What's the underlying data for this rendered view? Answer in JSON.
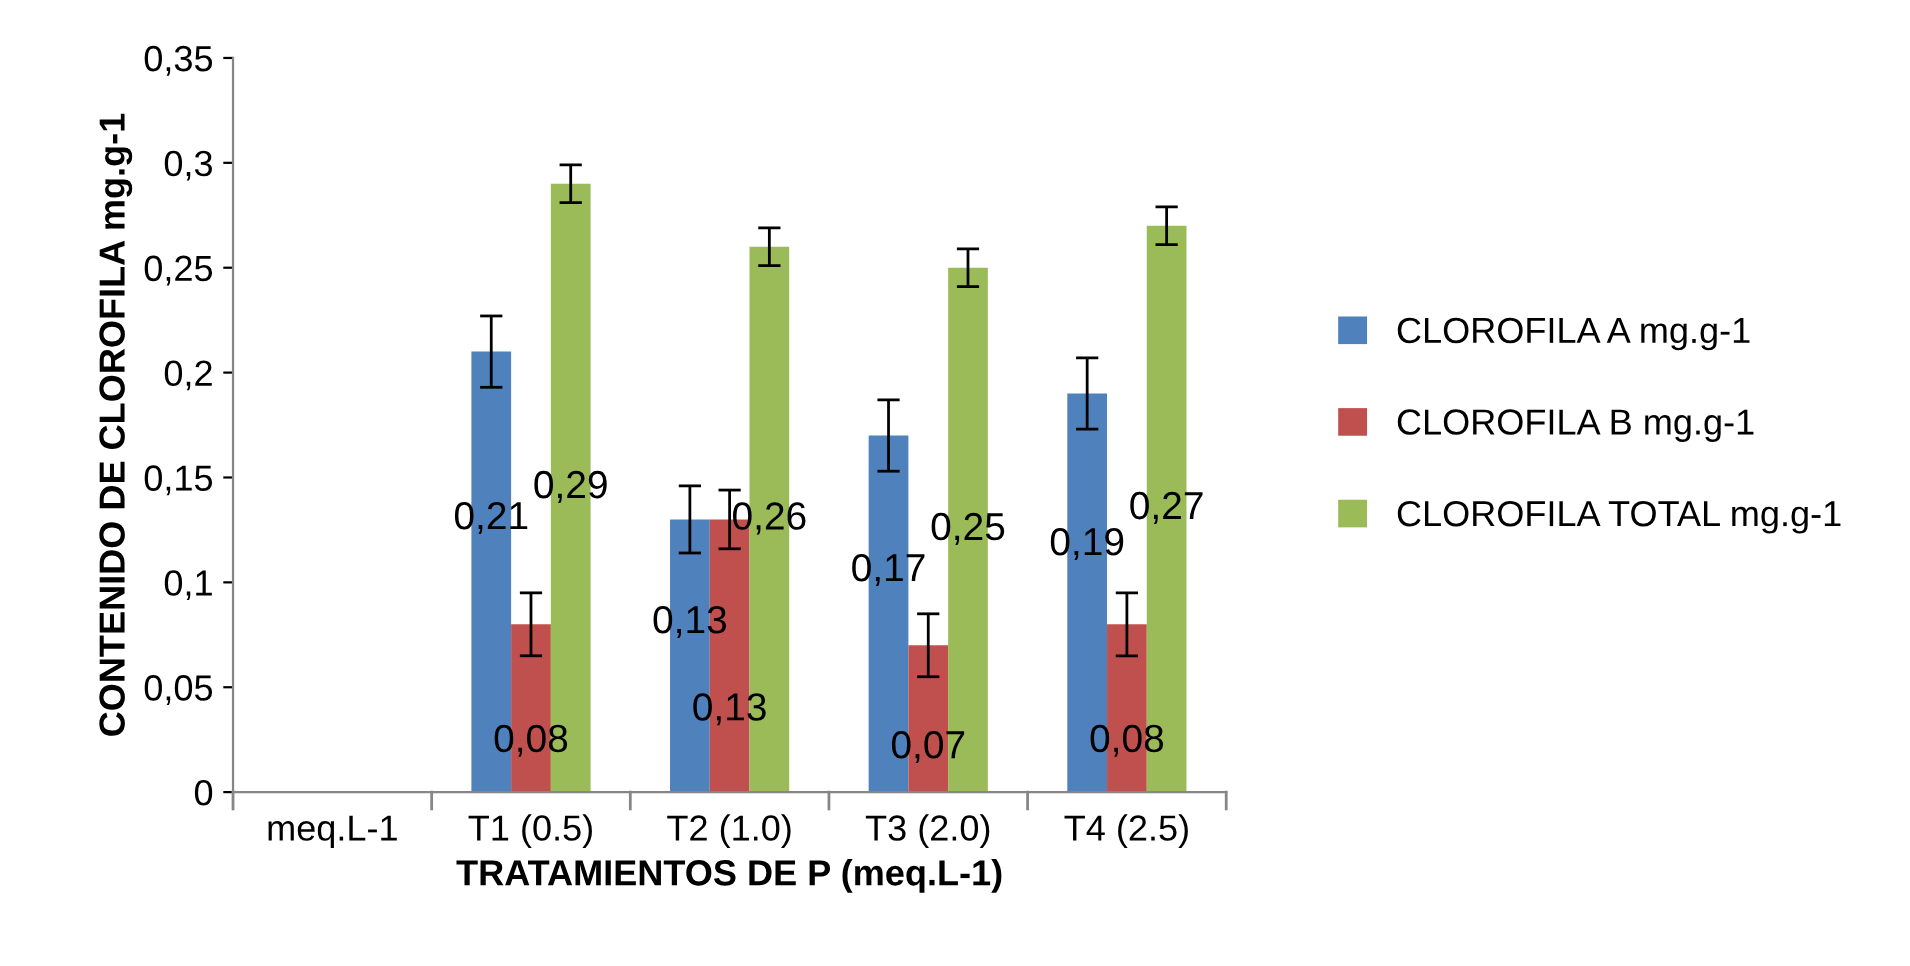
{
  "chart_data": {
    "type": "bar",
    "xlabel": "TRATAMIENTOS DE P (meq.L-1)",
    "ylabel": "CONTENIDO DE CLOROFILA mg.g-1",
    "categories": [
      "meq.L-1",
      "T1 (0.5)",
      "T2 (1.0)",
      "T3 (2.0)",
      "T4 (2.5)"
    ],
    "series": [
      {
        "name": "CLOROFILA A mg.g-1",
        "color": "#4f81bd",
        "values": [
          null,
          0.21,
          0.13,
          0.17,
          0.19
        ],
        "errors": [
          null,
          0.017,
          0.016,
          0.017,
          0.017
        ],
        "value_labels": [
          null,
          "0,21",
          "0,13",
          "0,17",
          "0,19"
        ]
      },
      {
        "name": "CLOROFILA B mg.g-1",
        "color": "#c0504d",
        "values": [
          null,
          0.08,
          0.13,
          0.07,
          0.08
        ],
        "errors": [
          null,
          0.015,
          0.014,
          0.015,
          0.015
        ],
        "value_labels": [
          null,
          "0,08",
          "0,13",
          "0,07",
          "0,08"
        ]
      },
      {
        "name": "CLOROFILA TOTAL mg.g-1",
        "color": "#9bbb59",
        "values": [
          null,
          0.29,
          0.26,
          0.25,
          0.27
        ],
        "errors": [
          null,
          0.009,
          0.009,
          0.009,
          0.009
        ],
        "value_labels": [
          null,
          "0,29",
          "0,26",
          "0,25",
          "0,27"
        ]
      }
    ],
    "ylim": [
      0,
      0.35
    ],
    "yticks": [
      0,
      {
        "value": 0.05,
        "label": "0,05"
      },
      {
        "value": 0.1,
        "label": "0,1"
      },
      {
        "value": 0.15,
        "label": "0,15"
      },
      {
        "value": 0.2,
        "label": "0,2"
      },
      {
        "value": 0.25,
        "label": "0,25"
      },
      {
        "value": 0.3,
        "label": "0,3"
      },
      {
        "value": 0.35,
        "label": "0,35"
      }
    ],
    "grid": false,
    "legend": "right"
  }
}
